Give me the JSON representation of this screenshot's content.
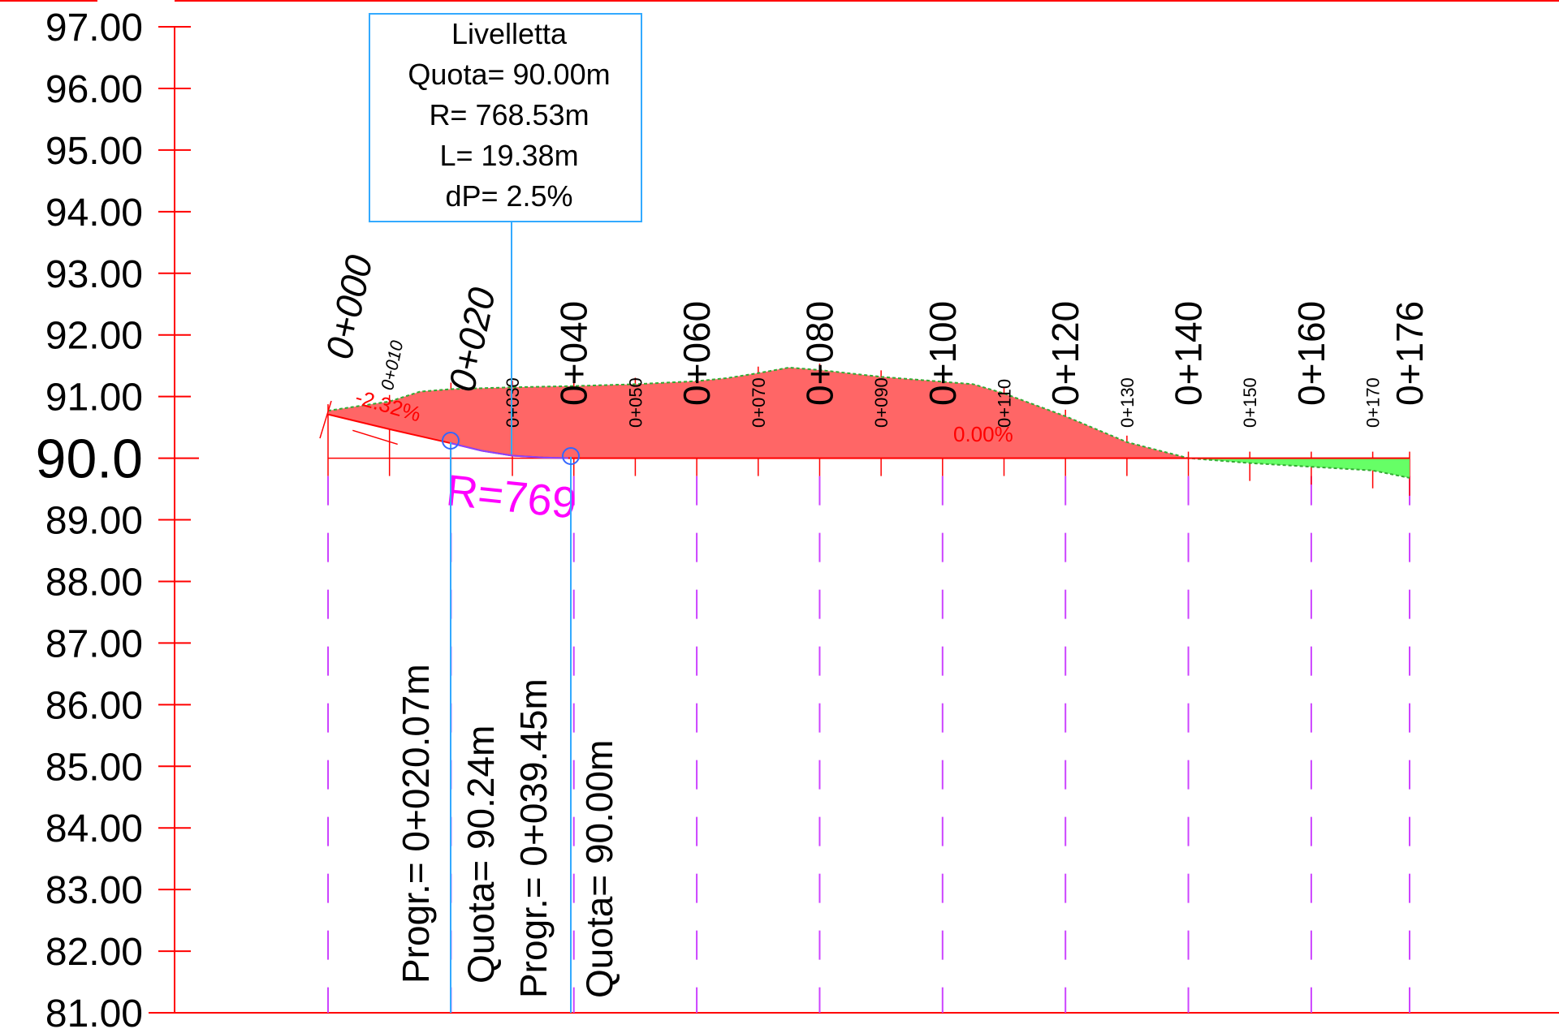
{
  "chart_data": {
    "type": "area",
    "y_axis_labels": [
      "97.00",
      "96.00",
      "95.00",
      "94.00",
      "93.00",
      "92.00",
      "91.00",
      "90.0",
      "89.00",
      "88.00",
      "87.00",
      "86.00",
      "85.00",
      "84.00",
      "83.00",
      "82.00",
      "81.00"
    ],
    "ylim": [
      81,
      97
    ],
    "xlim": [
      0,
      176
    ],
    "datum": 90,
    "major_stations": [
      {
        "label": "0+000",
        "x": 0
      },
      {
        "label": "0+020",
        "x": 20
      },
      {
        "label": "0+040",
        "x": 40
      },
      {
        "label": "0+060",
        "x": 60
      },
      {
        "label": "0+080",
        "x": 80
      },
      {
        "label": "0+100",
        "x": 100
      },
      {
        "label": "0+120",
        "x": 120
      },
      {
        "label": "0+140",
        "x": 140
      },
      {
        "label": "0+160",
        "x": 160
      },
      {
        "label": "0+176",
        "x": 176
      }
    ],
    "minor_stations": [
      {
        "label": "0+010",
        "x": 10
      },
      {
        "label": "0+030",
        "x": 30
      },
      {
        "label": "0+050",
        "x": 50
      },
      {
        "label": "0+070",
        "x": 70
      },
      {
        "label": "0+090",
        "x": 90
      },
      {
        "label": "0+110",
        "x": 110
      },
      {
        "label": "0+130",
        "x": 130
      },
      {
        "label": "0+150",
        "x": 150
      },
      {
        "label": "0+170",
        "x": 170
      }
    ],
    "terrain": {
      "x": [
        0,
        10,
        15,
        20,
        30,
        40,
        50,
        60,
        65,
        70,
        75,
        80,
        90,
        100,
        105,
        110,
        120,
        130,
        140,
        150,
        160,
        170,
        176
      ],
      "y": [
        90.77,
        90.92,
        91.08,
        91.12,
        91.15,
        91.17,
        91.2,
        91.25,
        91.3,
        91.38,
        91.47,
        91.43,
        91.32,
        91.24,
        91.2,
        91.05,
        90.68,
        90.26,
        90.0,
        89.92,
        89.86,
        89.8,
        89.68
      ]
    },
    "grade_line": {
      "x": [
        0,
        10,
        20.07,
        25,
        30,
        35,
        39.45,
        176
      ],
      "y": [
        90.71,
        90.47,
        90.24,
        90.12,
        90.04,
        90.01,
        90.0,
        90.0
      ]
    },
    "slope_labels": [
      "-2.32%",
      "0.00%"
    ],
    "curve_label": "R=769",
    "info_box": {
      "title": "Livelletta",
      "lines": [
        "Quota= 90.00m",
        "R= 768.53m",
        "L= 19.38m",
        "dP= 2.5%"
      ]
    },
    "vertical_labels": [
      "Progr.= 0+020.07m",
      "Quota= 90.24m",
      "Progr.= 0+039.45m",
      "Quota= 90.00m"
    ],
    "colors": {
      "axis": "#ff0000",
      "cut_fill": "#ff6666",
      "embankment_fill": "#66ff66",
      "station_lines": "#cc44ff",
      "box_border": "#33aaff",
      "curve_label": "#ff00ff"
    }
  }
}
